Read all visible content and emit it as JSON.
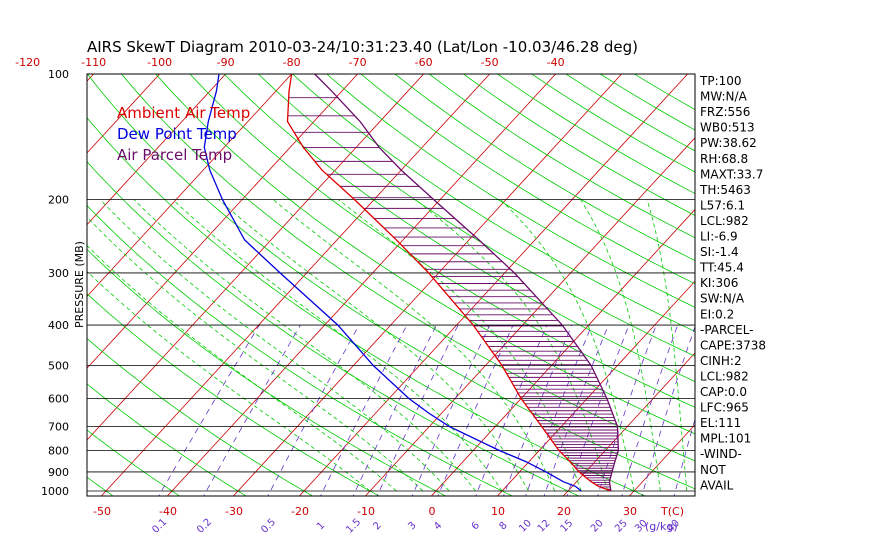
{
  "chart_data": {
    "type": "line",
    "title": "AIRS SkewT Diagram 2010-03-24/10:31:23.40 (Lat/Lon -10.03/46.28 deg)",
    "ylabel": "PRESSURE (MB)",
    "xlabel": "T(C)",
    "mixing_ratio_unit": "(g/kg)",
    "y_scale": "log",
    "ylim": [
      1000,
      100
    ],
    "pressure_ticks": [
      "100",
      "200",
      "300",
      "400",
      "500",
      "600",
      "700",
      "800",
      "900",
      "1000"
    ],
    "pressure_levels": [
      100,
      200,
      300,
      400,
      500,
      600,
      700,
      800,
      900,
      1000
    ],
    "top_temp_ticks": [
      "-120",
      "-110",
      "-100",
      "-90",
      "-80",
      "-70",
      "-60",
      "-50",
      "-40"
    ],
    "bottom_temp_ticks": [
      "-50",
      "-40",
      "-30",
      "-20",
      "-10",
      "0",
      "10",
      "20",
      "30"
    ],
    "mixing_ratio_ticks": [
      "0.1",
      "0.2",
      "0.5",
      "1",
      "1.5",
      "2",
      "3",
      "4",
      "6",
      "8",
      "10",
      "12",
      "15",
      "20",
      "25",
      "30",
      "40"
    ],
    "legend": [
      {
        "label": "Ambient Air Temp",
        "color": "#dd0000"
      },
      {
        "label": "Dew Point Temp",
        "color": "#0000dd"
      },
      {
        "label": "Air Parcel Temp",
        "color": "#6a0d6a"
      }
    ],
    "series": [
      {
        "name": "Ambient Air Temp",
        "color": "#dd0000",
        "p": [
          1000,
          975,
          950,
          900,
          850,
          800,
          700,
          600,
          500,
          400,
          300,
          250,
          200,
          170,
          150,
          130,
          110,
          100
        ],
        "t": [
          26.5,
          24,
          22.2,
          19,
          16.2,
          13,
          7,
          0,
          -7.5,
          -17.5,
          -31.5,
          -41,
          -53,
          -62,
          -68,
          -74,
          -78,
          -80
        ]
      },
      {
        "name": "Dew Point Temp",
        "color": "#0000dd",
        "p": [
          1000,
          975,
          950,
          900,
          850,
          800,
          700,
          650,
          600,
          500,
          400,
          300,
          250,
          200,
          170,
          150,
          130,
          110,
          100
        ],
        "t": [
          22,
          20.5,
          18,
          14,
          9.5,
          4,
          -7,
          -12,
          -17,
          -27,
          -38,
          -54,
          -64,
          -73,
          -79,
          -83,
          -86,
          -89,
          -91
        ]
      },
      {
        "name": "Air Parcel Temp",
        "color": "#6a0d6a",
        "p": [
          1000,
          950,
          900,
          850,
          800,
          700,
          600,
          500,
          400,
          300,
          250,
          200,
          170,
          150,
          130,
          110,
          100
        ],
        "t": [
          26.5,
          25,
          24,
          23,
          22,
          18.5,
          13,
          6,
          -4,
          -18.5,
          -28.5,
          -41,
          -50,
          -56.5,
          -63,
          -71.5,
          -76.5
        ]
      }
    ],
    "stats": [
      "TP:100",
      "MW:N/A",
      "FRZ:556",
      "WB0:513",
      "PW:38.62",
      "RH:68.8",
      "MAXT:33.7",
      "TH:5463",
      "L57:6.1",
      "LCL:982",
      "LI:-6.9",
      "SI:-1.4",
      "TT:45.4",
      "KI:306",
      "SW:N/A",
      "EI:0.2",
      "-PARCEL-",
      "CAPE:3738",
      "CINH:2",
      "LCL:982",
      "CAP:0.0",
      "LFC:965",
      "EL:111",
      "MPL:101",
      "-WIND-",
      "NOT",
      "AVAIL"
    ],
    "colors": {
      "isotherm": "#cc0000",
      "dry_adiabat": "#00cc00",
      "moist_adiabat": "#00cc00",
      "mixing_ratio": "#6633cc",
      "isobar": "#000000",
      "text": "#000000",
      "axis_label": "#cc0000"
    },
    "grid": true
  }
}
